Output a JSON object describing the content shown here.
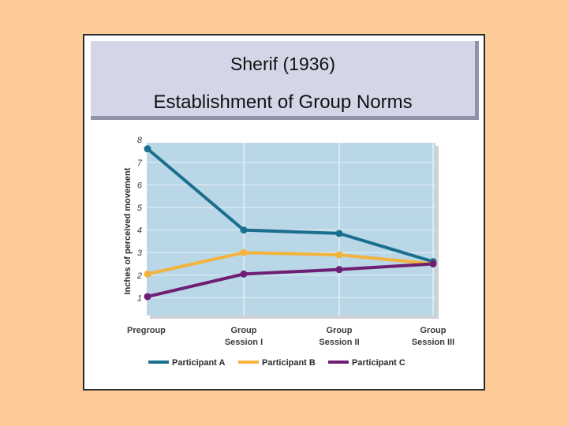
{
  "slide": {
    "title_line1": "Sherif (1936)",
    "title_line2": "Establishment of Group Norms"
  },
  "colors": {
    "background": "#fdcb98",
    "plot_area": "#b9d7e6",
    "grid": "#e6f1f7",
    "participant_a": "#1a6f8e",
    "participant_b": "#f3b33d",
    "participant_c": "#6e1f73"
  },
  "chart_data": {
    "type": "line",
    "title": "",
    "xlabel": "",
    "ylabel": "Inches of perceived movement",
    "ylim": [
      0,
      8
    ],
    "yticks": [
      1,
      2,
      3,
      4,
      5,
      6,
      7,
      8
    ],
    "categories": [
      [
        "Pregroup"
      ],
      [
        "Group",
        "Session I"
      ],
      [
        "Group",
        "Session II"
      ],
      [
        "Group",
        "Session III"
      ]
    ],
    "series": [
      {
        "name": "Participant A",
        "color": "#1a6f8e",
        "values": [
          7.6,
          4.0,
          3.85,
          2.6
        ]
      },
      {
        "name": "Participant B",
        "color": "#f3b33d",
        "values": [
          2.05,
          3.0,
          2.9,
          2.5
        ]
      },
      {
        "name": "Participant C",
        "color": "#6e1f73",
        "values": [
          1.05,
          2.05,
          2.25,
          2.5
        ]
      }
    ],
    "legend_position": "bottom",
    "grid": true
  }
}
